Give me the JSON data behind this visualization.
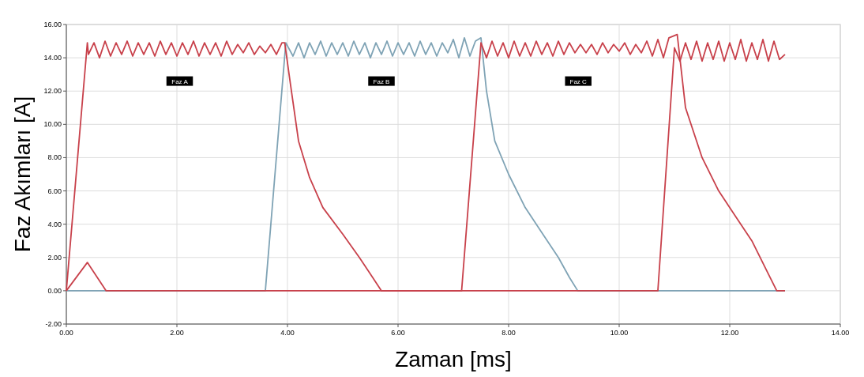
{
  "chart_data": {
    "type": "line",
    "xlabel": "Zaman [ms]",
    "ylabel": "Faz Akımları [A]",
    "xlim": [
      0,
      14
    ],
    "ylim": [
      -2,
      16
    ],
    "xticks": [
      {
        "value": 0,
        "label": "0.00"
      },
      {
        "value": 2,
        "label": "2.00"
      },
      {
        "value": 4,
        "label": "4.00"
      },
      {
        "value": 6,
        "label": "6.00"
      },
      {
        "value": 8,
        "label": "8.00"
      },
      {
        "value": 10,
        "label": "10.00"
      },
      {
        "value": 12,
        "label": "12.00"
      },
      {
        "value": 14,
        "label": "14.00"
      }
    ],
    "yticks": [
      {
        "value": -2,
        "label": "-2.00"
      },
      {
        "value": 0,
        "label": "0.00"
      },
      {
        "value": 2,
        "label": "2.00"
      },
      {
        "value": 4,
        "label": "4.00"
      },
      {
        "value": 6,
        "label": "6.00"
      },
      {
        "value": 8,
        "label": "8.00"
      },
      {
        "value": 10,
        "label": "10.00"
      },
      {
        "value": 12,
        "label": "12.00"
      },
      {
        "value": 14,
        "label": "14.00"
      },
      {
        "value": 16,
        "label": "16.00"
      }
    ],
    "grid": true,
    "line_style": "solid",
    "marker": "none",
    "annotations": [
      {
        "text": "Faz A",
        "x": 2.05,
        "y": 12.6
      },
      {
        "text": "Faz B",
        "x": 5.7,
        "y": 12.6
      },
      {
        "text": "Faz C",
        "x": 9.26,
        "y": 12.6
      }
    ],
    "series": [
      {
        "color": "#7fa3b5",
        "x": [
          0,
          3.6,
          3.97,
          4.1,
          4.2,
          4.3,
          4.4,
          4.5,
          4.6,
          4.7,
          4.8,
          4.9,
          5.0,
          5.1,
          5.2,
          5.3,
          5.4,
          5.5,
          5.6,
          5.7,
          5.8,
          5.9,
          6.0,
          6.1,
          6.2,
          6.3,
          6.4,
          6.5,
          6.6,
          6.7,
          6.8,
          6.9,
          7.0,
          7.1,
          7.2,
          7.3,
          7.4,
          7.5,
          7.6,
          7.75,
          8.0,
          8.3,
          8.6,
          8.9,
          9.1,
          9.25,
          13.0
        ],
        "values": [
          0,
          0,
          14.9,
          14.1,
          14.9,
          14.0,
          14.9,
          14.2,
          15.0,
          14.1,
          14.9,
          14.2,
          14.9,
          14.1,
          15.0,
          14.2,
          14.9,
          14.0,
          14.9,
          14.2,
          15.0,
          14.1,
          14.9,
          14.2,
          14.9,
          14.1,
          15.0,
          14.2,
          14.9,
          14.1,
          14.9,
          14.3,
          15.1,
          14.0,
          15.2,
          14.1,
          15.0,
          15.2,
          12.0,
          9.0,
          7.0,
          5.0,
          3.5,
          2.0,
          0.8,
          0,
          0
        ]
      },
      {
        "color": "#c8414b",
        "x": [
          0,
          0.38,
          0.4,
          0.5,
          0.6,
          0.7,
          0.8,
          0.9,
          1.0,
          1.1,
          1.2,
          1.3,
          1.4,
          1.5,
          1.6,
          1.7,
          1.8,
          1.9,
          2.0,
          2.1,
          2.2,
          2.3,
          2.4,
          2.5,
          2.6,
          2.7,
          2.8,
          2.9,
          3.0,
          3.1,
          3.2,
          3.3,
          3.4,
          3.5,
          3.6,
          3.7,
          3.8,
          3.9,
          3.95,
          4.05,
          4.2,
          4.4,
          4.64,
          5.0,
          5.3,
          5.5,
          5.7,
          10.7,
          11.0,
          11.1,
          11.2,
          11.3,
          11.4,
          11.5,
          11.6,
          11.7,
          11.8,
          11.9,
          12.0,
          12.1,
          12.2,
          12.3,
          12.4,
          12.5,
          12.6,
          12.7,
          12.8,
          12.9,
          13.0
        ],
        "values": [
          0,
          14.9,
          14.2,
          14.9,
          14.0,
          15.0,
          14.1,
          14.9,
          14.2,
          15.0,
          14.1,
          14.9,
          14.2,
          14.9,
          14.1,
          15.0,
          14.2,
          14.9,
          14.1,
          14.9,
          14.2,
          15.0,
          14.1,
          14.9,
          14.2,
          14.9,
          14.1,
          15.0,
          14.2,
          14.8,
          14.3,
          14.9,
          14.2,
          14.7,
          14.3,
          14.8,
          14.2,
          14.9,
          14.9,
          12.5,
          9.0,
          6.8,
          5.0,
          3.4,
          2.0,
          1.0,
          0,
          0,
          14.6,
          13.8,
          14.9,
          13.9,
          15.0,
          13.8,
          14.9,
          13.9,
          15.0,
          13.8,
          14.9,
          13.9,
          15.1,
          13.8,
          14.9,
          13.9,
          15.1,
          13.8,
          15.0,
          13.9,
          14.2
        ]
      },
      {
        "color": "#c8414b",
        "x": [
          0,
          0.38,
          0.72,
          7.15,
          7.5,
          7.6,
          7.7,
          7.8,
          7.9,
          8.0,
          8.1,
          8.2,
          8.3,
          8.4,
          8.5,
          8.6,
          8.7,
          8.8,
          8.9,
          9.0,
          9.1,
          9.2,
          9.3,
          9.4,
          9.5,
          9.6,
          9.7,
          9.8,
          9.9,
          10.0,
          10.1,
          10.2,
          10.3,
          10.4,
          10.5,
          10.6,
          10.7,
          10.8,
          10.9,
          11.05,
          11.2,
          11.5,
          11.8,
          12.1,
          12.4,
          12.7,
          12.85,
          13.0
        ],
        "values": [
          0,
          1.7,
          0,
          0,
          14.9,
          14.0,
          15.0,
          14.1,
          14.9,
          14.0,
          15.0,
          14.1,
          14.9,
          14.1,
          15.0,
          14.2,
          14.9,
          14.1,
          15.0,
          14.2,
          14.9,
          14.3,
          14.8,
          14.3,
          14.8,
          14.2,
          14.9,
          14.3,
          14.8,
          14.4,
          14.9,
          14.2,
          14.8,
          14.3,
          15.0,
          14.1,
          15.1,
          14.0,
          15.2,
          15.4,
          11.0,
          8.0,
          6.0,
          4.5,
          3.0,
          1.0,
          0,
          0
        ]
      }
    ]
  }
}
